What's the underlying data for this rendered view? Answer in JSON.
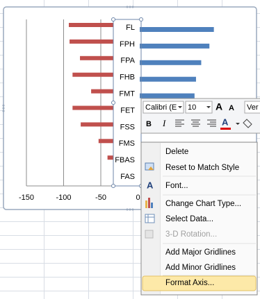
{
  "chart_data": {
    "type": "bar",
    "orientation": "horizontal",
    "categories": [
      "FL",
      "FPH",
      "FPA",
      "FHB",
      "FMT",
      "FET",
      "FSS",
      "FMS",
      "FBAS",
      "FAS"
    ],
    "series": [
      {
        "color": "#c0504d",
        "values": [
          -93,
          -92,
          -78,
          -88,
          -63,
          -88,
          -77,
          -53,
          -41,
          null
        ]
      },
      {
        "color": "#4f81bd",
        "values": [
          102,
          96,
          85,
          78,
          76,
          null,
          null,
          null,
          null,
          null
        ]
      }
    ],
    "xlim": [
      -150,
      150
    ],
    "xticks": [
      -150,
      -100,
      -50,
      0
    ],
    "grid": true
  },
  "mini_toolbar": {
    "font": "Calibri (E",
    "size": "10",
    "style": "Ver",
    "buttons": [
      "A",
      "A",
      "B",
      "I",
      "A"
    ]
  },
  "context_menu": {
    "items": [
      {
        "label": "Delete"
      },
      {
        "label": "Reset to Match Style"
      },
      {
        "label": "Font...",
        "icon": "A"
      },
      {
        "label": "Change Chart Type..."
      },
      {
        "label": "Select Data..."
      },
      {
        "label": "3-D Rotation...",
        "disabled": true
      },
      {
        "label": "Add Major Gridlines"
      },
      {
        "label": "Add Minor Gridlines"
      },
      {
        "label": "Format Axis...",
        "highlighted": true
      }
    ]
  }
}
